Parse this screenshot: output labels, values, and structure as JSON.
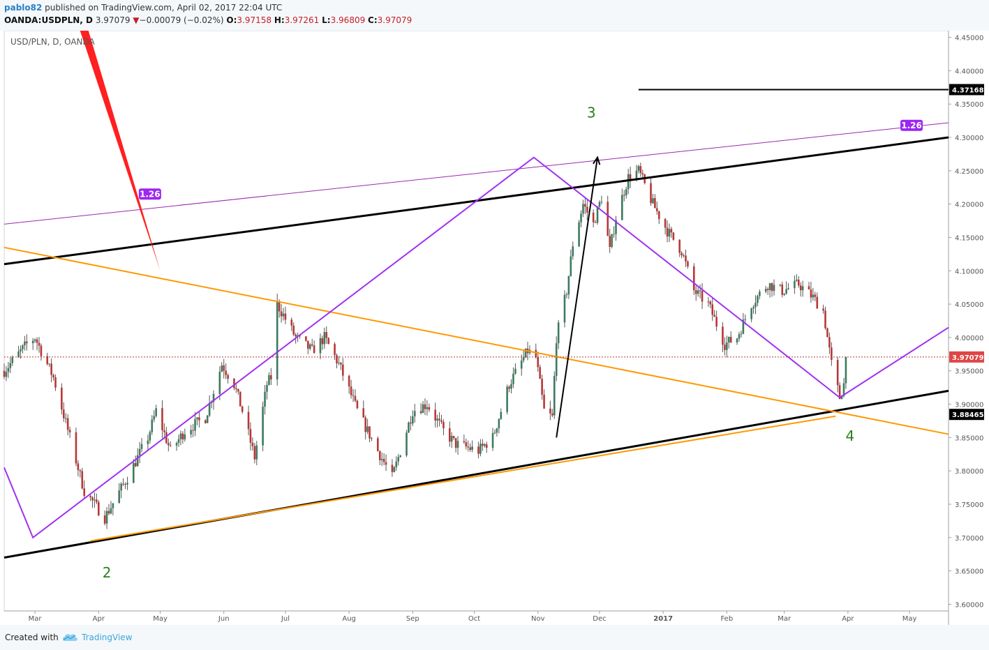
{
  "header": {
    "author": "pablo82",
    "published_text": " published on TradingView.com, April 02, 2017 22:04 UTC",
    "symbol": "OANDA:USDPLN, D",
    "last": "3.97079",
    "change_arrow": "▼",
    "change": "−0.00079 (−0.02%)",
    "open_label": "O:",
    "open": "3.97158",
    "high_label": "H:",
    "high": "3.97261",
    "low_label": "L:",
    "low": "3.96809",
    "close_label": "C:",
    "close": "3.97079"
  },
  "footer": {
    "created_with": "Created with",
    "brand": "TradingView",
    "logo_icon": "tradingview-cloud-icon"
  },
  "chart_data": {
    "type": "candlestick",
    "title": "USD/PLN, D, OANDA",
    "colors": {
      "up": "#3d7a5e",
      "down": "#b93636",
      "wick": "#555555",
      "background": "#ffffff"
    },
    "ylim": [
      3.59,
      4.46
    ],
    "y_ticks": [
      "4.45000",
      "4.40000",
      "4.35000",
      "4.30000",
      "4.25000",
      "4.20000",
      "4.15000",
      "4.10000",
      "4.05000",
      "4.00000",
      "3.95000",
      "3.90000",
      "3.85000",
      "3.80000",
      "3.75000",
      "3.70000",
      "3.65000",
      "3.60000"
    ],
    "x_ticks": [
      {
        "label": "Mar",
        "date": "2016-03-01",
        "bold": false
      },
      {
        "label": "Apr",
        "date": "2016-04-01",
        "bold": false
      },
      {
        "label": "May",
        "date": "2016-05-01",
        "bold": false
      },
      {
        "label": "Jun",
        "date": "2016-06-01",
        "bold": false
      },
      {
        "label": "Jul",
        "date": "2016-07-01",
        "bold": false
      },
      {
        "label": "Aug",
        "date": "2016-08-01",
        "bold": false
      },
      {
        "label": "Sep",
        "date": "2016-09-01",
        "bold": false
      },
      {
        "label": "Oct",
        "date": "2016-10-01",
        "bold": false
      },
      {
        "label": "Nov",
        "date": "2016-11-01",
        "bold": false
      },
      {
        "label": "Dec",
        "date": "2016-12-01",
        "bold": false
      },
      {
        "label": "2017",
        "date": "2017-01-01",
        "bold": true
      },
      {
        "label": "Feb",
        "date": "2017-02-01",
        "bold": false
      },
      {
        "label": "Mar",
        "date": "2017-03-01",
        "bold": false
      },
      {
        "label": "Apr",
        "date": "2017-04-01",
        "bold": false
      },
      {
        "label": "May",
        "date": "2017-05-01",
        "bold": false
      }
    ],
    "xlim": [
      "2016-02-15",
      "2017-05-20"
    ],
    "price_path": [
      [
        "2016-02-15",
        3.95
      ],
      [
        "2016-02-26",
        3.99
      ],
      [
        "2016-03-01",
        4.0
      ],
      [
        "2016-03-10",
        3.94
      ],
      [
        "2016-03-18",
        3.85
      ],
      [
        "2016-03-25",
        3.77
      ],
      [
        "2016-04-04",
        3.73
      ],
      [
        "2016-04-15",
        3.79
      ],
      [
        "2016-04-25",
        3.85
      ],
      [
        "2016-04-29",
        3.89
      ],
      [
        "2016-05-06",
        3.83
      ],
      [
        "2016-05-13",
        3.86
      ],
      [
        "2016-05-23",
        3.88
      ],
      [
        "2016-05-31",
        3.96
      ],
      [
        "2016-06-06",
        3.93
      ],
      [
        "2016-06-10",
        3.89
      ],
      [
        "2016-06-16",
        3.82
      ],
      [
        "2016-06-22",
        3.93
      ],
      [
        "2016-06-24",
        3.94
      ],
      [
        "2016-06-27",
        4.05
      ],
      [
        "2016-07-06",
        4.0
      ],
      [
        "2016-07-14",
        3.98
      ],
      [
        "2016-07-20",
        4.0
      ],
      [
        "2016-07-27",
        3.96
      ],
      [
        "2016-08-05",
        3.89
      ],
      [
        "2016-08-15",
        3.83
      ],
      [
        "2016-08-22",
        3.79
      ],
      [
        "2016-09-01",
        3.89
      ],
      [
        "2016-09-08",
        3.9
      ],
      [
        "2016-09-16",
        3.86
      ],
      [
        "2016-09-22",
        3.84
      ],
      [
        "2016-10-03",
        3.83
      ],
      [
        "2016-10-10",
        3.85
      ],
      [
        "2016-10-18",
        3.93
      ],
      [
        "2016-10-27",
        3.98
      ],
      [
        "2016-10-31",
        3.97
      ],
      [
        "2016-11-04",
        3.89
      ],
      [
        "2016-11-08",
        3.88
      ],
      [
        "2016-11-10",
        4.0
      ],
      [
        "2016-11-15",
        4.07
      ],
      [
        "2016-11-18",
        4.14
      ],
      [
        "2016-11-23",
        4.2
      ],
      [
        "2016-11-28",
        4.17
      ],
      [
        "2016-12-02",
        4.21
      ],
      [
        "2016-12-06",
        4.13
      ],
      [
        "2016-12-09",
        4.18
      ],
      [
        "2016-12-15",
        4.24
      ],
      [
        "2016-12-20",
        4.25
      ],
      [
        "2016-12-27",
        4.2
      ],
      [
        "2017-01-03",
        4.16
      ],
      [
        "2017-01-10",
        4.13
      ],
      [
        "2017-01-16",
        4.07
      ],
      [
        "2017-01-23",
        4.05
      ],
      [
        "2017-01-31",
        3.99
      ],
      [
        "2017-02-06",
        4.0
      ],
      [
        "2017-02-13",
        4.05
      ],
      [
        "2017-02-21",
        4.08
      ],
      [
        "2017-02-28",
        4.07
      ],
      [
        "2017-03-08",
        4.08
      ],
      [
        "2017-03-15",
        4.06
      ],
      [
        "2017-03-20",
        4.04
      ],
      [
        "2017-03-24",
        3.96
      ],
      [
        "2017-03-28",
        3.91
      ],
      [
        "2017-03-30",
        3.93
      ],
      [
        "2017-03-31",
        3.97079
      ]
    ],
    "horizontal_lines": [
      {
        "price": 4.37168,
        "label": "4.37168",
        "from": "2016-12-20",
        "color": "#000000"
      },
      {
        "price": 3.97079,
        "label": "3.97079",
        "style": "dotted",
        "color": "#b93636"
      }
    ],
    "price_labels": [
      {
        "price": 3.88465,
        "label": "3.88465"
      }
    ],
    "trendlines": [
      {
        "name": "channel-upper",
        "color": "#000000",
        "width": 3,
        "points": [
          [
            "2016-02-15",
            4.11
          ],
          [
            "2017-05-20",
            4.3
          ]
        ]
      },
      {
        "name": "channel-lower",
        "color": "#000000",
        "width": 3,
        "points": [
          [
            "2016-02-15",
            3.67
          ],
          [
            "2017-05-20",
            3.92
          ]
        ]
      },
      {
        "name": "orange-descending",
        "color": "#ff9800",
        "width": 2,
        "points": [
          [
            "2016-02-15",
            4.135
          ],
          [
            "2017-05-20",
            3.855
          ]
        ]
      },
      {
        "name": "orange-lower",
        "color": "#ff9800",
        "width": 2,
        "points": [
          [
            "2016-03-28",
            3.695
          ],
          [
            "2017-03-26",
            3.882
          ]
        ]
      },
      {
        "name": "fib-upper-line",
        "color": "#9c27b0",
        "width": 1,
        "points": [
          [
            "2016-02-15",
            4.17
          ],
          [
            "2017-05-20",
            4.322
          ]
        ]
      },
      {
        "name": "wave-path",
        "color": "#a030f0",
        "width": 2,
        "points": [
          [
            "2016-02-15",
            3.805
          ],
          [
            "2016-02-29",
            3.7
          ],
          [
            "2016-10-30",
            4.27
          ],
          [
            "2017-03-28",
            3.91
          ],
          [
            "2017-05-20",
            4.015
          ]
        ]
      },
      {
        "name": "red-line",
        "color": "#ff2020",
        "width": "wedge",
        "points": [
          [
            "2016-03-25",
            4.46
          ],
          [
            "2016-05-01",
            4.1
          ]
        ]
      },
      {
        "name": "black-arrow",
        "color": "#000000",
        "width": 2,
        "arrow": true,
        "points": [
          [
            "2016-11-10",
            3.85
          ],
          [
            "2016-11-30",
            4.27
          ]
        ]
      }
    ],
    "fib_labels": [
      {
        "text": "1.26",
        "date": "2016-04-26",
        "price": 4.215
      },
      {
        "text": "1.26",
        "date": "2017-05-02",
        "price": 4.318
      }
    ],
    "wave_labels": [
      {
        "text": "2",
        "date": "2016-04-05",
        "price": 3.64
      },
      {
        "text": "3",
        "date": "2016-11-27",
        "price": 4.33
      },
      {
        "text": "4",
        "date": "2017-04-02",
        "price": 3.845
      }
    ]
  }
}
